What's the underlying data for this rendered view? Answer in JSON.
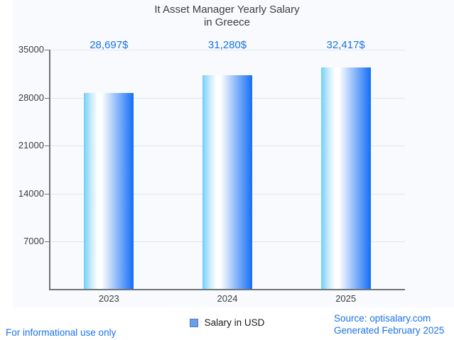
{
  "chart_data": {
    "type": "bar",
    "title": "It Asset Manager Yearly Salary",
    "subtitle": "in Greece",
    "categories": [
      "2023",
      "2024",
      "2025"
    ],
    "values": [
      28697,
      31280,
      32417
    ],
    "value_labels": [
      "28,697$",
      "31,280$",
      "32,417$"
    ],
    "series": [
      {
        "name": "Salary in USD",
        "values": [
          28697,
          31280,
          32417
        ]
      }
    ],
    "xlabel": "",
    "ylabel": "",
    "ylim": [
      0,
      35000
    ],
    "yticks": [
      35000,
      28000,
      21000,
      14000,
      7000
    ],
    "grid": true,
    "legend_position": "bottom",
    "bar_style": "horizontal-gradient-cylinder"
  },
  "legend": {
    "label": "Salary in USD",
    "swatch_icon": "blue-square-icon"
  },
  "footer": {
    "disclaimer": "For informational use only",
    "source": "Source: optisalary.com",
    "generated": "Generated February 2025"
  },
  "colors": {
    "accent_blue": "#1a73e8",
    "bar_left": "#72cff8",
    "bar_mid": "#ffffff",
    "bar_right": "#146ef6",
    "legend_swatch": "#6d9eeb",
    "legend_swatch_border": "#4a7bbf",
    "text_dark": "#3c4043",
    "grid": "#e4e7e9",
    "axis": "#6f7479",
    "plot_bg": "#f8fafd"
  }
}
